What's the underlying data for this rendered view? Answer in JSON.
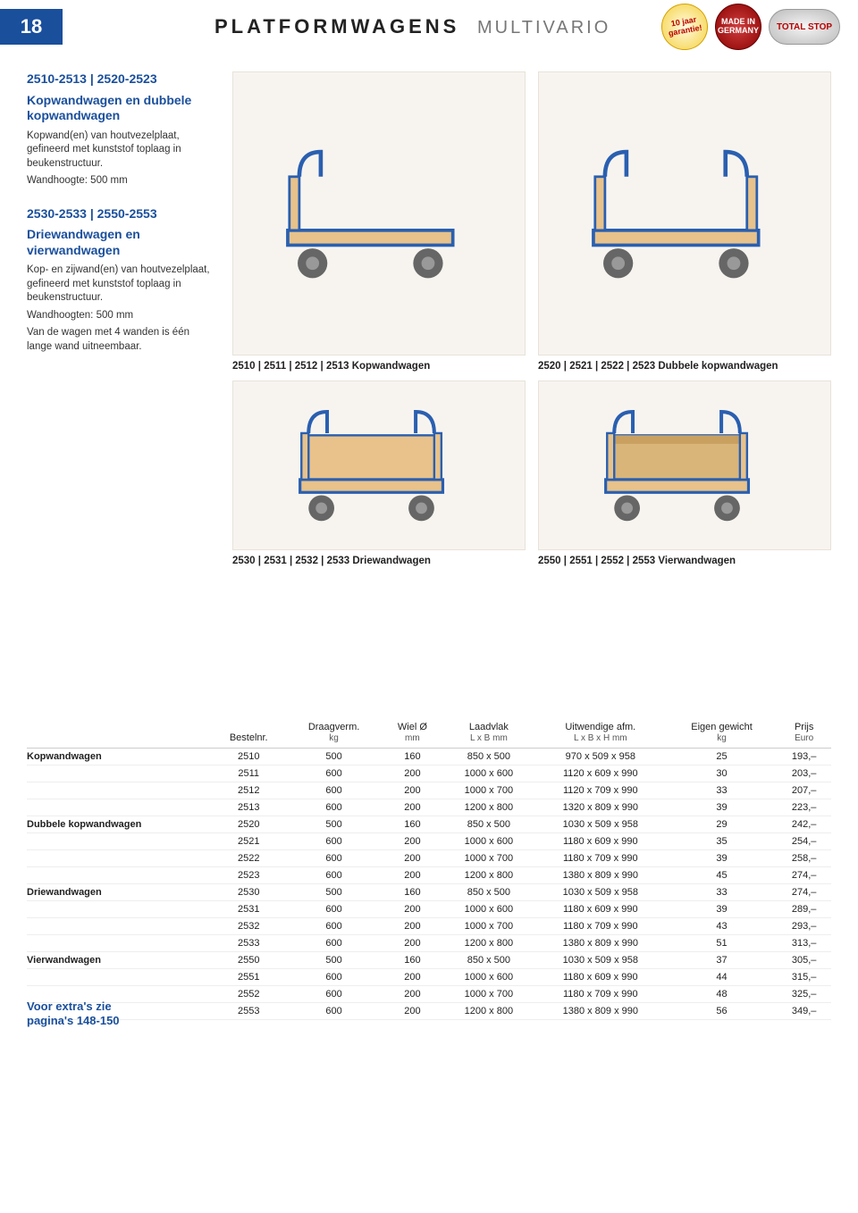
{
  "pageNumber": "18",
  "header": {
    "main": "PLATFORMWAGENS",
    "sub": "MULTIVARIO"
  },
  "badges": {
    "yellow": "10 jaar garantie!",
    "red": "MADE IN GERMANY",
    "silver": "TOTAL STOP"
  },
  "sidebar": {
    "block1": {
      "title1": "2510-2513 | 2520-2523",
      "title2": "Kopwandwagen en dubbele kopwandwagen",
      "desc": "Kopwand(en) van houtvezelplaat, gefineerd met kunststof toplaag in beukenstructuur.",
      "height": "Wandhoogte: 500 mm"
    },
    "block2": {
      "title1": "2530-2533 | 2550-2553",
      "title2": "Driewandwagen en vierwandwagen",
      "desc": "Kop- en zijwand(en) van houtvezelplaat, gefineerd met kunststof toplaag in beukenstructuur.",
      "heights": "Wandhoogten: 500 mm",
      "note": "Van de wagen met 4 wanden is één lange wand uitneembaar."
    }
  },
  "captions": {
    "c1": "2510 | 2511 | 2512 | 2513  Kopwandwagen",
    "c2": "2520 | 2521 | 2522 | 2523  Dubbele kopwandwagen",
    "c3": "2530 | 2531 | 2532 | 2533  Driewandwagen",
    "c4": "2550 | 2551 | 2552 | 2553  Vierwandwagen"
  },
  "table": {
    "headers": {
      "h0": "",
      "h1": "Bestelnr.",
      "h2": "Draagverm.",
      "h2s": "kg",
      "h3": "Wiel Ø",
      "h3s": "mm",
      "h4": "Laadvlak",
      "h4s": "L x B mm",
      "h5": "Uitwendige afm.",
      "h5s": "L x B x H mm",
      "h6": "Eigen gewicht",
      "h6s": "kg",
      "h7": "Prijs",
      "h7s": "Euro"
    },
    "groups": [
      {
        "label": "Kopwandwagen",
        "rows": [
          [
            "2510",
            "500",
            "160",
            "850 x 500",
            "970 x 509 x 958",
            "25",
            "193,–"
          ],
          [
            "2511",
            "600",
            "200",
            "1000 x 600",
            "1120 x 609 x 990",
            "30",
            "203,–"
          ],
          [
            "2512",
            "600",
            "200",
            "1000 x 700",
            "1120 x 709 x 990",
            "33",
            "207,–"
          ],
          [
            "2513",
            "600",
            "200",
            "1200 x 800",
            "1320 x 809 x 990",
            "39",
            "223,–"
          ]
        ]
      },
      {
        "label": "Dubbele kopwandwagen",
        "rows": [
          [
            "2520",
            "500",
            "160",
            "850 x 500",
            "1030 x 509 x 958",
            "29",
            "242,–"
          ],
          [
            "2521",
            "600",
            "200",
            "1000 x 600",
            "1180 x 609 x 990",
            "35",
            "254,–"
          ],
          [
            "2522",
            "600",
            "200",
            "1000 x 700",
            "1180 x 709 x 990",
            "39",
            "258,–"
          ],
          [
            "2523",
            "600",
            "200",
            "1200 x 800",
            "1380 x 809 x 990",
            "45",
            "274,–"
          ]
        ]
      },
      {
        "label": "Driewandwagen",
        "rows": [
          [
            "2530",
            "500",
            "160",
            "850 x 500",
            "1030 x 509 x 958",
            "33",
            "274,–"
          ],
          [
            "2531",
            "600",
            "200",
            "1000 x 600",
            "1180 x 609 x 990",
            "39",
            "289,–"
          ],
          [
            "2532",
            "600",
            "200",
            "1000 x 700",
            "1180 x 709 x 990",
            "43",
            "293,–"
          ],
          [
            "2533",
            "600",
            "200",
            "1200 x 800",
            "1380 x 809 x 990",
            "51",
            "313,–"
          ]
        ]
      },
      {
        "label": "Vierwandwagen",
        "rows": [
          [
            "2550",
            "500",
            "160",
            "850 x 500",
            "1030 x 509 x 958",
            "37",
            "305,–"
          ],
          [
            "2551",
            "600",
            "200",
            "1000 x 600",
            "1180 x 609 x 990",
            "44",
            "315,–"
          ],
          [
            "2552",
            "600",
            "200",
            "1000 x 700",
            "1180 x 709 x 990",
            "48",
            "325,–"
          ],
          [
            "2553",
            "600",
            "200",
            "1200 x 800",
            "1380 x 809 x 990",
            "56",
            "349,–"
          ]
        ]
      }
    ]
  },
  "footer": {
    "l1": "Voor extra's zie",
    "l2": "pagina's 148-150"
  },
  "colors": {
    "brandBlue": "#1a4f9c",
    "wood": "#e8c28a",
    "frame": "#2a5fb0",
    "wheel": "#555"
  }
}
